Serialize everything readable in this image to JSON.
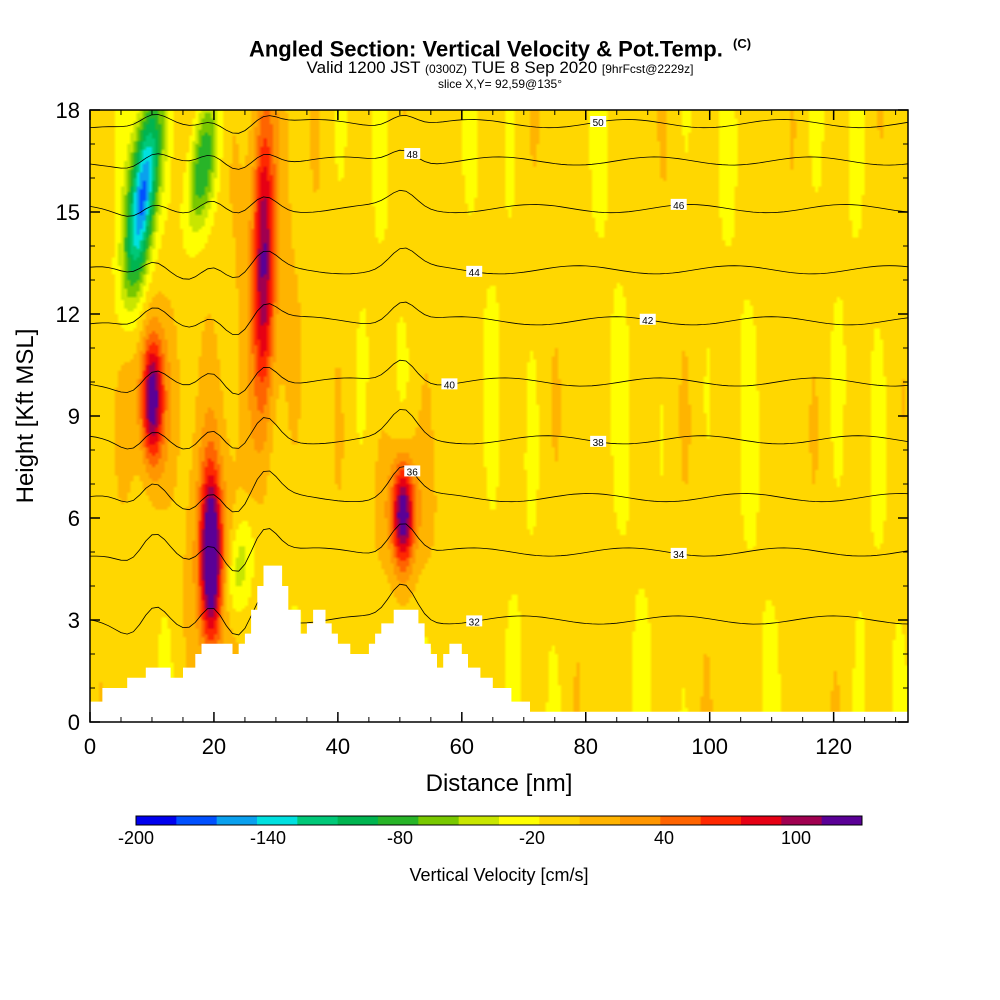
{
  "header": {
    "title": "Angled Section: Vertical Velocity & Pot.Temp.",
    "title_tag": "(C)",
    "valid_prefix": "Valid 1200 JST",
    "valid_zulu": "(0300Z)",
    "valid_date": "TUE 8 Sep 2020",
    "forecast": "[9hrFcst@2229z]",
    "slice": "slice X,Y= 92,59@135°"
  },
  "chart_data": {
    "type": "heatmap",
    "xlabel": "Distance [nm]",
    "ylabel": "Height [Kft MSL]",
    "xlim": [
      0,
      132
    ],
    "ylim": [
      0,
      18
    ],
    "x_ticks": [
      "0",
      "20",
      "40",
      "60",
      "80",
      "100",
      "120"
    ],
    "y_ticks": [
      "0",
      "3",
      "6",
      "9",
      "12",
      "15",
      "18"
    ],
    "background_value": -10,
    "updraft_cores": [
      {
        "x": 10,
        "y_min": 7.5,
        "y_max": 11.5,
        "peak": 105
      },
      {
        "x": 19.5,
        "y_min": 2.2,
        "y_max": 7.5,
        "peak": 130
      },
      {
        "x": 28,
        "y_min": 9,
        "y_max": 18,
        "peak": 85
      },
      {
        "x": 50.5,
        "y_min": 4.5,
        "y_max": 7.7,
        "peak": 110
      }
    ],
    "downdraft_cores": [
      {
        "x": 8.5,
        "y_min": 13,
        "y_max": 18,
        "peak": -170
      },
      {
        "x": 18,
        "y_min": 14.5,
        "y_max": 18,
        "peak": -90
      },
      {
        "x": 24,
        "y_min": 3,
        "y_max": 6,
        "peak": -60
      }
    ],
    "contours": [
      {
        "label": "32",
        "y": 3.0
      },
      {
        "label": "34",
        "y": 5.0
      },
      {
        "label": "36",
        "y": 6.6
      },
      {
        "label": "38",
        "y": 8.3
      },
      {
        "label": "40",
        "y": 10.0
      },
      {
        "label": "42",
        "y": 11.8
      },
      {
        "label": "44",
        "y": 13.3
      },
      {
        "label": "46",
        "y": 15.1
      },
      {
        "label": "48",
        "y": 16.5
      },
      {
        "label": "50",
        "y": 17.6
      }
    ],
    "terrain": [
      [
        0,
        0.6
      ],
      [
        2,
        0.6
      ],
      [
        2,
        1.0
      ],
      [
        6,
        1.0
      ],
      [
        6,
        1.3
      ],
      [
        9,
        1.3
      ],
      [
        9,
        1.6
      ],
      [
        13,
        1.6
      ],
      [
        13,
        1.3
      ],
      [
        15,
        1.3
      ],
      [
        15,
        1.6
      ],
      [
        17,
        1.6
      ],
      [
        17,
        2.0
      ],
      [
        18,
        2.0
      ],
      [
        18,
        2.3
      ],
      [
        23,
        2.3
      ],
      [
        23,
        2.0
      ],
      [
        24,
        2.0
      ],
      [
        24,
        2.3
      ],
      [
        25,
        2.3
      ],
      [
        25,
        2.6
      ],
      [
        26,
        2.6
      ],
      [
        26,
        3.3
      ],
      [
        27,
        3.3
      ],
      [
        27,
        4.0
      ],
      [
        28,
        4.0
      ],
      [
        28,
        4.6
      ],
      [
        31,
        4.6
      ],
      [
        31,
        4.0
      ],
      [
        32,
        4.0
      ],
      [
        32,
        3.3
      ],
      [
        34,
        3.3
      ],
      [
        34,
        2.6
      ],
      [
        35,
        2.6
      ],
      [
        35,
        2.9
      ],
      [
        36,
        2.9
      ],
      [
        36,
        3.3
      ],
      [
        38,
        3.3
      ],
      [
        38,
        2.9
      ],
      [
        39,
        2.9
      ],
      [
        39,
        2.6
      ],
      [
        40,
        2.6
      ],
      [
        40,
        2.3
      ],
      [
        42,
        2.3
      ],
      [
        42,
        2.0
      ],
      [
        45,
        2.0
      ],
      [
        45,
        2.3
      ],
      [
        46,
        2.3
      ],
      [
        46,
        2.6
      ],
      [
        47,
        2.6
      ],
      [
        47,
        2.9
      ],
      [
        49,
        2.9
      ],
      [
        49,
        3.3
      ],
      [
        53,
        3.3
      ],
      [
        53,
        2.9
      ],
      [
        54,
        2.9
      ],
      [
        54,
        2.3
      ],
      [
        55,
        2.3
      ],
      [
        55,
        2.0
      ],
      [
        56,
        2.0
      ],
      [
        56,
        1.6
      ],
      [
        57,
        1.6
      ],
      [
        57,
        2.0
      ],
      [
        58,
        2.0
      ],
      [
        58,
        2.3
      ],
      [
        60,
        2.3
      ],
      [
        60,
        2.0
      ],
      [
        61,
        2.0
      ],
      [
        61,
        1.6
      ],
      [
        63,
        1.6
      ],
      [
        63,
        1.3
      ],
      [
        65,
        1.3
      ],
      [
        65,
        1.0
      ],
      [
        68,
        1.0
      ],
      [
        68,
        0.6
      ],
      [
        71,
        0.6
      ],
      [
        71,
        0.3
      ],
      [
        132,
        0.3
      ]
    ],
    "colorbar": {
      "label": "Vertical Velocity [cm/s]",
      "range": [
        -200,
        130
      ],
      "tick_labels": [
        "-200",
        "-140",
        "-80",
        "-20",
        "40",
        "100"
      ],
      "tick_values": [
        -200,
        -140,
        -80,
        -20,
        40,
        100
      ],
      "colors": [
        "#0000ee",
        "#0050ff",
        "#0aa0ee",
        "#00e0e0",
        "#00c878",
        "#00b450",
        "#28b428",
        "#78c800",
        "#c8e600",
        "#ffff00",
        "#ffd700",
        "#ffb400",
        "#ff9600",
        "#ff6400",
        "#ff2800",
        "#e60014",
        "#a00050",
        "#5a0096"
      ]
    }
  }
}
